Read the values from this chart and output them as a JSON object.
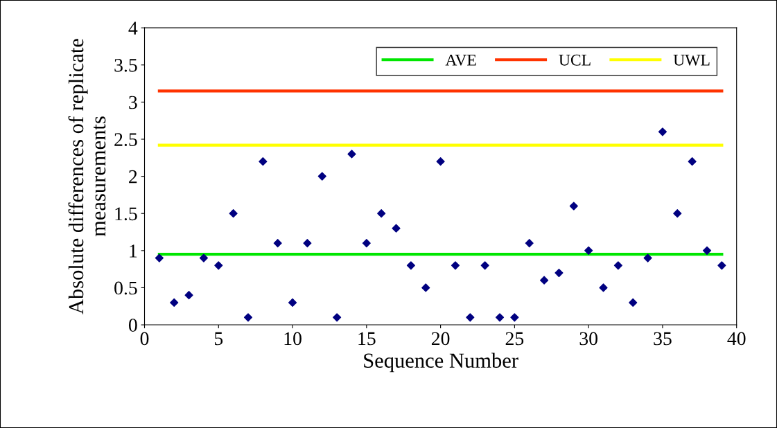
{
  "chart_data": {
    "type": "scatter",
    "xlabel": "Sequence Number",
    "ylabel": "Absolute differences of replicate\nmeasurements",
    "xlim": [
      0,
      40
    ],
    "xticks": [
      0,
      5,
      10,
      15,
      20,
      25,
      30,
      35,
      40
    ],
    "ylim": [
      0,
      4
    ],
    "yticks": [
      0,
      0.5,
      1,
      1.5,
      2,
      2.5,
      3,
      3.5,
      4
    ],
    "grid": false,
    "legend": "top right",
    "series": [
      {
        "marker": "diamond",
        "color": "#000080",
        "x": [
          1,
          2,
          3,
          4,
          5,
          6,
          7,
          8,
          9,
          10,
          11,
          12,
          13,
          14,
          15,
          16,
          17,
          18,
          19,
          20,
          21,
          22,
          23,
          24,
          25,
          26,
          27,
          28,
          29,
          30,
          31,
          32,
          33,
          34,
          35,
          36,
          37,
          38,
          39
        ],
        "values": [
          0.9,
          0.3,
          0.4,
          0.9,
          0.8,
          1.5,
          0.1,
          2.2,
          1.1,
          0.3,
          1.1,
          2.0,
          0.1,
          2.3,
          1.1,
          1.5,
          1.3,
          0.8,
          0.5,
          2.2,
          0.8,
          0.1,
          0.8,
          0.1,
          0.1,
          1.1,
          0.6,
          0.7,
          1.6,
          1.0,
          0.5,
          0.8,
          0.3,
          0.9,
          2.6,
          1.5,
          2.2,
          1.0,
          0.8
        ]
      },
      {
        "type": "line",
        "name": "AVE",
        "color": "#00e600",
        "x": [
          1,
          39
        ],
        "values": [
          0.95,
          0.95
        ]
      },
      {
        "type": "line",
        "name": "UCL",
        "color": "#ff3300",
        "x": [
          1,
          39
        ],
        "values": [
          3.15,
          3.15
        ]
      },
      {
        "type": "line",
        "name": "UWL",
        "color": "#ffff00",
        "x": [
          1,
          39
        ],
        "values": [
          2.42,
          2.42
        ]
      }
    ]
  }
}
